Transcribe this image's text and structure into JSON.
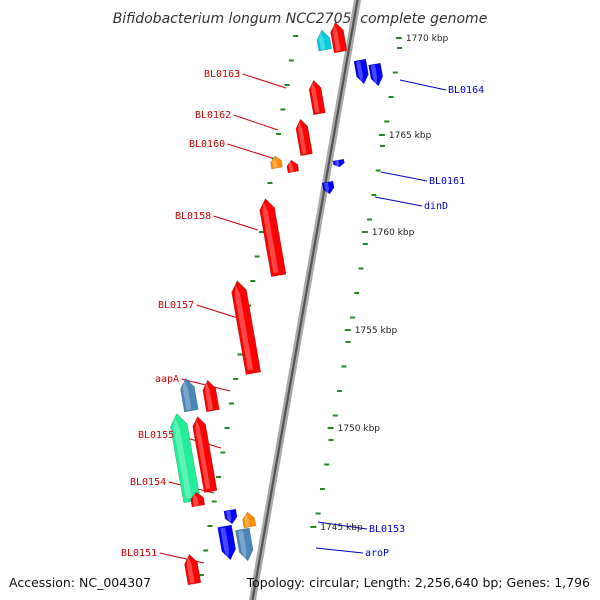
{
  "title": "Bifidobacterium longum NCC2705, complete genome",
  "accession_text": "Accession: NC_004307",
  "topology_text": "Topology: circular; Length: 2,256,640 bp; Genes: 1,796",
  "colors": {
    "forward_gene": "#ff0000",
    "reverse_gene": "#0000ff",
    "forward_label": "#cc0000",
    "reverse_label": "#0000cc",
    "orange_gene": "#ff8c00",
    "cyan_gene": "#00ccdd",
    "steel_gene": "#4a86b8",
    "aqua_green_gene": "#22ee99",
    "tick_green": "#228b22",
    "backbone": "#808080"
  },
  "scale_labels": [
    {
      "kbp": 1770,
      "text": "1770 kbp"
    },
    {
      "kbp": 1765,
      "text": "1765 kbp"
    },
    {
      "kbp": 1760,
      "text": "1760 kbp"
    },
    {
      "kbp": 1755,
      "text": "1755 kbp"
    },
    {
      "kbp": 1750,
      "text": "1750 kbp"
    },
    {
      "kbp": 1745,
      "text": "1745 kbp"
    }
  ],
  "gene_labels_left": [
    {
      "name": "BL0163"
    },
    {
      "name": "BL0162"
    },
    {
      "name": "BL0160"
    },
    {
      "name": "BL0158"
    },
    {
      "name": "BL0157"
    },
    {
      "name": "aapA"
    },
    {
      "name": "BL0155"
    },
    {
      "name": "BL0154"
    },
    {
      "name": "BL0151"
    }
  ],
  "gene_labels_right": [
    {
      "name": "BL0164"
    },
    {
      "name": "BL0161"
    },
    {
      "name": "dinD"
    },
    {
      "name": "BL0153"
    },
    {
      "name": "aroP"
    }
  ]
}
